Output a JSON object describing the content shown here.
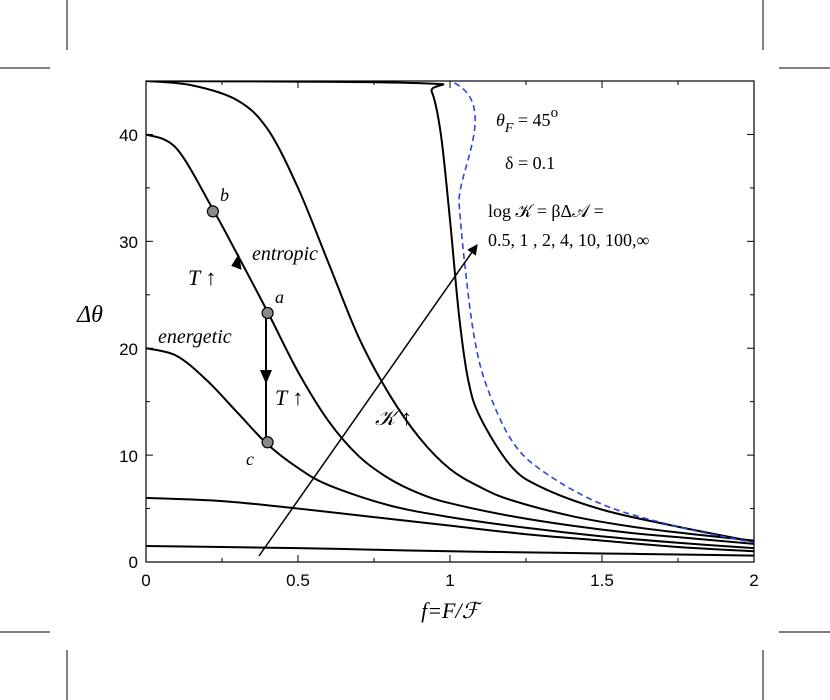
{
  "chart_data": {
    "type": "line",
    "xlabel": "f=F/ℱ",
    "ylabel": "Δθ",
    "xlim": [
      0,
      2
    ],
    "ylim": [
      0,
      45
    ],
    "x_ticks": [
      "0",
      "0.5",
      "1",
      "1.5",
      "2"
    ],
    "y_ticks": [
      "0",
      "10",
      "20",
      "30",
      "40"
    ],
    "grid": false,
    "legend": "none",
    "series": [
      {
        "style": "solid",
        "color": "#000000",
        "x": [
          0,
          0.25,
          0.5,
          0.75,
          1.0,
          1.25,
          1.5,
          1.75,
          2.0
        ],
        "y": [
          1.5,
          1.4,
          1.3,
          1.15,
          1.0,
          0.9,
          0.8,
          0.7,
          0.6
        ]
      },
      {
        "style": "solid",
        "color": "#000000",
        "x": [
          0,
          0.25,
          0.5,
          0.75,
          1.0,
          1.25,
          1.5,
          1.75,
          2.0
        ],
        "y": [
          6.0,
          5.7,
          5.0,
          4.2,
          3.4,
          2.6,
          2.0,
          1.4,
          1.0
        ]
      },
      {
        "style": "solid",
        "color": "#000000",
        "x": [
          0,
          0.1,
          0.2,
          0.3,
          0.4,
          0.5,
          0.6,
          0.8,
          1.0,
          1.25,
          1.5,
          1.75,
          2.0
        ],
        "y": [
          20,
          19.3,
          17.0,
          14.0,
          11.0,
          8.8,
          7.2,
          5.3,
          4.2,
          3.2,
          2.4,
          1.8,
          1.3
        ]
      },
      {
        "style": "solid",
        "color": "#000000",
        "x": [
          0,
          0.1,
          0.22,
          0.3,
          0.4,
          0.5,
          0.6,
          0.7,
          0.8,
          0.9,
          1.0,
          1.2,
          1.4,
          1.6,
          1.8,
          2.0
        ],
        "y": [
          40,
          38.7,
          33.0,
          28.8,
          23.4,
          17.8,
          13.2,
          9.9,
          7.8,
          6.4,
          5.5,
          4.3,
          3.4,
          2.7,
          2.2,
          1.7
        ]
      },
      {
        "style": "solid",
        "color": "#000000",
        "x": [
          0,
          0.15,
          0.3,
          0.4,
          0.5,
          0.6,
          0.7,
          0.8,
          0.9,
          1.0,
          1.1,
          1.2,
          1.4,
          1.6,
          1.8,
          2.0
        ],
        "y": [
          45,
          44.6,
          43.2,
          40.5,
          35.0,
          28.0,
          21.0,
          15.7,
          11.6,
          8.7,
          7.0,
          5.8,
          4.3,
          3.3,
          2.6,
          2.0
        ]
      },
      {
        "style": "solid",
        "color": "#000000",
        "x": [
          0,
          0.9,
          0.94,
          0.97,
          1.0,
          1.03,
          1.06,
          1.1,
          1.2,
          1.3,
          1.5,
          1.75,
          2.0
        ],
        "y": [
          45,
          44.8,
          44.0,
          40.0,
          32.0,
          23.0,
          17.0,
          13.5,
          9.0,
          7.0,
          4.9,
          3.3,
          1.9
        ]
      },
      {
        "style": "dashed",
        "color": "#2a45e0",
        "x": [
          0,
          1.0,
          1.03,
          1.05,
          1.08,
          1.12,
          1.2,
          1.3,
          1.5,
          1.75,
          2.0
        ],
        "y": [
          45,
          45,
          33.5,
          27.5,
          21.0,
          16.5,
          11.5,
          8.6,
          5.4,
          3.3,
          1.8
        ]
      }
    ],
    "points": [
      {
        "label": "a",
        "x": 0.4,
        "y": 23.3
      },
      {
        "label": "b",
        "x": 0.22,
        "y": 32.8
      },
      {
        "label": "c",
        "x": 0.4,
        "y": 11.2
      }
    ],
    "annotations": {
      "theta_f_prefix": "θ",
      "theta_f_sub": "F",
      "theta_f_value": " = 45",
      "theta_f_unit": "o",
      "delta": "δ = 0.1",
      "log_k_line1": "log 𝒦 = βΔ𝒜 =",
      "log_k_line2": "0.5, 1 , 2, 4, 10, 100,∞",
      "entropic": "entropic",
      "energetic": "energetic",
      "t_up_1": "T ↑",
      "t_up_2": "T ↑",
      "k_up": "𝒦 ↑"
    }
  }
}
